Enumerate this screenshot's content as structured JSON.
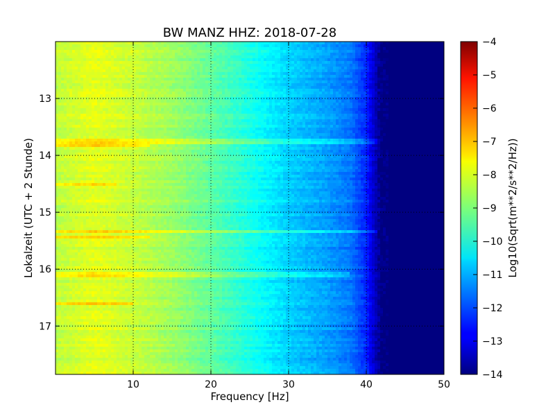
{
  "chart_data": {
    "type": "heatmap",
    "title": "BW MANZ HHZ: 2018-07-28",
    "xlabel": "Frequency [Hz]",
    "ylabel": "Lokalzeit (UTC + 2 Stunde)",
    "colorbar_label": "Log10(Sqrt(m**2/s**2/Hz))",
    "xlim": [
      0,
      50
    ],
    "ylim": [
      12.0,
      17.85
    ],
    "y_inverted": true,
    "x_ticks": [
      10,
      20,
      30,
      40,
      50
    ],
    "x_tick_labels": [
      "10",
      "20",
      "30",
      "40",
      "50"
    ],
    "y_ticks": [
      13,
      14,
      15,
      16,
      17
    ],
    "y_tick_labels": [
      "13",
      "14",
      "15",
      "16",
      "17"
    ],
    "grid": true,
    "colormap": "jet",
    "color_range": [
      -14,
      -4
    ],
    "colorbar_ticks": [
      -4,
      -5,
      -6,
      -7,
      -8,
      -9,
      -10,
      -11,
      -12,
      -13,
      -14
    ],
    "colorbar_tick_labels": [
      "−4",
      "−5",
      "−6",
      "−7",
      "−8",
      "−9",
      "−10",
      "−11",
      "−12",
      "−13",
      "−14"
    ],
    "spectrum_profile": {
      "frequency_hz": [
        0,
        5,
        10,
        15,
        20,
        25,
        30,
        35,
        38,
        40,
        41,
        42,
        45,
        50
      ],
      "log10_amplitude": [
        -8.4,
        -8.0,
        -8.3,
        -8.7,
        -9.3,
        -10.0,
        -10.7,
        -11.2,
        -11.6,
        -12.4,
        -13.3,
        -14.0,
        -14.0,
        -14.0
      ]
    },
    "high_energy_bands": [
      {
        "time": 13.75,
        "freq_range": [
          0,
          43
        ],
        "delta": 0.6
      },
      {
        "time": 13.82,
        "freq_range": [
          0,
          12
        ],
        "delta": 0.8
      },
      {
        "time": 14.5,
        "freq_range": [
          0,
          8
        ],
        "delta": 0.7
      },
      {
        "time": 15.35,
        "freq_range": [
          0,
          43
        ],
        "delta": 0.7
      },
      {
        "time": 15.45,
        "freq_range": [
          0,
          12
        ],
        "delta": 0.8
      },
      {
        "time": 16.1,
        "freq_range": [
          0,
          38
        ],
        "delta": 0.5
      },
      {
        "time": 16.62,
        "freq_range": [
          0,
          10
        ],
        "delta": 0.7
      }
    ]
  }
}
